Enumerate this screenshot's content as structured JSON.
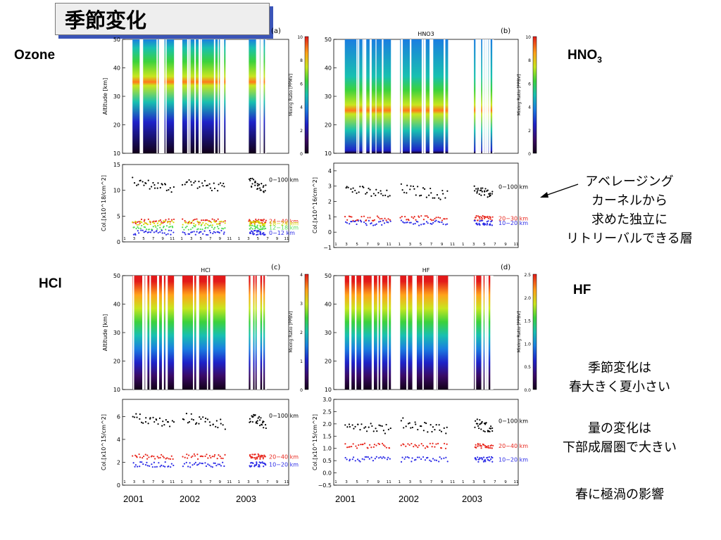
{
  "title": "季節変化",
  "species_labels": {
    "ozone": "Ozone",
    "hno3": "HNO",
    "hno3_sub": "3",
    "hcl": "HCl",
    "hf": "HF"
  },
  "notes": {
    "averaging_kernel": [
      "アベレージング",
      "カーネルから",
      "求めた独立に",
      "リトリーバルできる層"
    ],
    "seasonal": [
      "季節変化は",
      "春大きく夏小さい"
    ],
    "amount": [
      "量の変化は",
      "下部成層圏で大きい"
    ],
    "vortex": "春に極渦の影響"
  },
  "year_labels": [
    "2001",
    "2002",
    "2003"
  ],
  "colors": {
    "accent_shadow": "#3a54b8",
    "series_total": "#000000",
    "series_mid": "#e8261c",
    "series_low": "#2a2ae6",
    "series_green": "#55dd55",
    "series_yellow": "#d8d800"
  },
  "chart_data": [
    {
      "type": "heatmap",
      "panel_tag": "(a)",
      "header": "",
      "ylabel": "Altitude [km]",
      "ylim": [
        10,
        50
      ],
      "yticks": [
        "10",
        "20",
        "30",
        "40",
        "50"
      ],
      "colorbar": {
        "label": "Mixing Ratio [PPMV]",
        "range": [
          0,
          10
        ],
        "ticks": [
          "0",
          "2",
          "4",
          "6",
          "8",
          "10"
        ]
      },
      "observation_periods": [
        [
          "2001-02",
          "2001-05"
        ],
        [
          "2002-02",
          "2002-05"
        ],
        [
          "2003-03",
          "2003-05"
        ]
      ],
      "peak_altitude_km": 35,
      "color_scheme": "rainbow"
    },
    {
      "type": "heatmap",
      "panel_tag": "(b)",
      "header": "HNO3",
      "ylabel": "",
      "ylim": [
        10,
        50
      ],
      "yticks": [
        "10",
        "20",
        "30",
        "40",
        "50"
      ],
      "colorbar": {
        "label": "Mixing Ratio [PPBV]",
        "range": [
          0,
          10
        ],
        "ticks": [
          "0",
          "2",
          "4",
          "6",
          "8",
          "10"
        ]
      },
      "observation_periods": [
        [
          "2001-02",
          "2001-05"
        ],
        [
          "2002-02",
          "2002-05"
        ],
        [
          "2003-03",
          "2003-05"
        ]
      ],
      "peak_altitude_km": 25,
      "color_scheme": "rainbow"
    },
    {
      "type": "scatter",
      "panel_tag": "",
      "ylabel": "Col.[x10^18/cm^2]",
      "ylim": [
        0,
        15
      ],
      "yticks": [
        "0",
        "5",
        "10",
        "15"
      ],
      "xticks": [
        "1",
        "3",
        "5",
        "7",
        "9",
        "11",
        "1",
        "3",
        "5",
        "7",
        "9",
        "11",
        "1",
        "3",
        "5",
        "7",
        "9",
        "11"
      ],
      "series": [
        {
          "name": "0−100 km",
          "color": "#000000",
          "level": 11
        },
        {
          "name": "24−40 km",
          "color": "#e8261c",
          "level": 4.0
        },
        {
          "name": "18−24 km",
          "color": "#d8d800",
          "level": 3.6
        },
        {
          "name": "12−18 km",
          "color": "#55dd55",
          "level": 2.8
        },
        {
          "name": "0−12 km",
          "color": "#2a2ae6",
          "level": 1.8
        }
      ]
    },
    {
      "type": "scatter",
      "panel_tag": "",
      "ylabel": "Col.[x10^16/cm^2]",
      "ylim": [
        -1,
        4.5
      ],
      "yticks": [
        "−1",
        "0",
        "1",
        "2",
        "3",
        "4"
      ],
      "xticks": [
        "1",
        "3",
        "5",
        "7",
        "9",
        "11",
        "1",
        "3",
        "5",
        "7",
        "9",
        "11",
        "1",
        "3",
        "5",
        "7",
        "9",
        "11"
      ],
      "series": [
        {
          "name": "0−100 km",
          "color": "#000000",
          "level": 2.6
        },
        {
          "name": "20−30 km",
          "color": "#e8261c",
          "level": 0.9
        },
        {
          "name": "10−20 km",
          "color": "#2a2ae6",
          "level": 0.6
        }
      ]
    },
    {
      "type": "heatmap",
      "panel_tag": "(c)",
      "header": "HCl",
      "ylabel": "Altitude [km]",
      "ylim": [
        10,
        50
      ],
      "yticks": [
        "10",
        "20",
        "30",
        "40",
        "50"
      ],
      "colorbar": {
        "label": "Mixing Ratio [PPBV]",
        "range": [
          0,
          4
        ],
        "ticks": [
          "0",
          "1",
          "2",
          "3",
          "4"
        ]
      },
      "observation_periods": [
        [
          "2001-02",
          "2001-05"
        ],
        [
          "2002-02",
          "2002-05"
        ],
        [
          "2003-03",
          "2003-05"
        ]
      ],
      "peak_altitude_km": 45,
      "color_scheme": "rainbow"
    },
    {
      "type": "heatmap",
      "panel_tag": "(d)",
      "header": "HF",
      "ylabel": "",
      "ylim": [
        10,
        50
      ],
      "yticks": [
        "10",
        "20",
        "30",
        "40",
        "50"
      ],
      "colorbar": {
        "label": "Mixing Ratio [PPBV]",
        "range": [
          0,
          2.5
        ],
        "ticks": [
          "0.0",
          "0.5",
          "1.0",
          "1.5",
          "2.0",
          "2.5"
        ]
      },
      "observation_periods": [
        [
          "2001-02",
          "2001-05"
        ],
        [
          "2002-02",
          "2002-05"
        ],
        [
          "2003-03",
          "2003-05"
        ]
      ],
      "peak_altitude_km": 45,
      "color_scheme": "rainbow"
    },
    {
      "type": "scatter",
      "panel_tag": "",
      "ylabel": "Col.[x10^15/cm^2]",
      "ylim": [
        0,
        7.5
      ],
      "yticks": [
        "0",
        "2",
        "4",
        "6"
      ],
      "xticks": [
        "1",
        "3",
        "5",
        "7",
        "9",
        "11",
        "1",
        "3",
        "5",
        "7",
        "9",
        "11",
        "1",
        "3",
        "5",
        "7",
        "9",
        "11"
      ],
      "series": [
        {
          "name": "0−100 km",
          "color": "#000000",
          "level": 5.6
        },
        {
          "name": "20−40 km",
          "color": "#e8261c",
          "level": 2.5
        },
        {
          "name": "10−20 km",
          "color": "#2a2ae6",
          "level": 1.8
        }
      ]
    },
    {
      "type": "scatter",
      "panel_tag": "",
      "ylabel": "Col.[x10^15/cm^2]",
      "ylim": [
        -0.5,
        3.0
      ],
      "yticks": [
        "−0.5",
        "0.0",
        "0.5",
        "1.0",
        "1.5",
        "2.0",
        "2.5",
        "3.0"
      ],
      "xticks": [
        "1",
        "3",
        "5",
        "7",
        "9",
        "11",
        "1",
        "3",
        "5",
        "7",
        "9",
        "11",
        "1",
        "3",
        "5",
        "7",
        "9",
        "11"
      ],
      "series": [
        {
          "name": "0−100 km",
          "color": "#000000",
          "level": 1.9
        },
        {
          "name": "20−40 km",
          "color": "#e8261c",
          "level": 1.1
        },
        {
          "name": "10−20 km",
          "color": "#2a2ae6",
          "level": 0.55
        }
      ]
    }
  ]
}
